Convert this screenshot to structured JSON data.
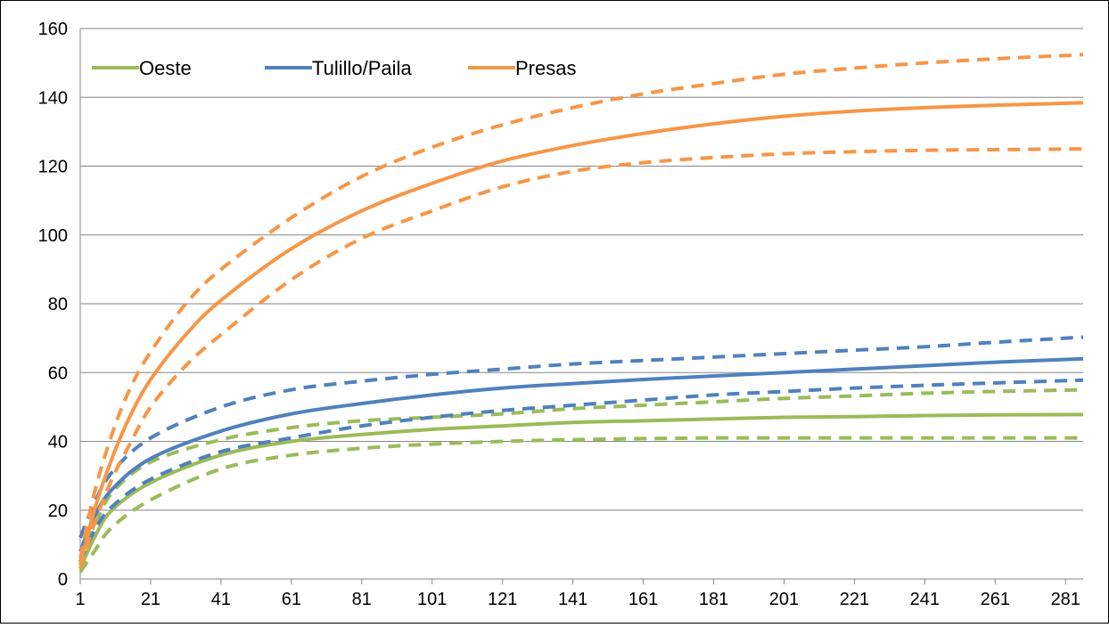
{
  "chart_data": {
    "type": "line",
    "title": "",
    "xlabel": "",
    "ylabel": "",
    "xlim": [
      1,
      286
    ],
    "ylim": [
      0,
      160
    ],
    "grid": "horizontal",
    "legend_position": "top-left",
    "x_ticks": [
      1,
      21,
      41,
      61,
      81,
      101,
      121,
      141,
      161,
      181,
      201,
      221,
      241,
      261,
      281
    ],
    "y_ticks": [
      0,
      20,
      40,
      60,
      80,
      100,
      120,
      140,
      160
    ],
    "legend": [
      {
        "name": "Oeste",
        "color": "#9BBB59"
      },
      {
        "name": "Tulillo/Paila",
        "color": "#4F81BD"
      },
      {
        "name": "Presas",
        "color": "#F79646"
      }
    ],
    "series": [
      {
        "group": "Oeste",
        "style": "solid",
        "color": "#9BBB59",
        "x": [
          1,
          5,
          10,
          21,
          41,
          61,
          81,
          101,
          121,
          141,
          161,
          181,
          201,
          221,
          241,
          261,
          286
        ],
        "y": [
          3,
          12,
          20,
          28,
          36,
          40,
          42,
          43.5,
          44.5,
          45.5,
          46,
          46.5,
          47,
          47.2,
          47.5,
          47.7,
          47.8
        ]
      },
      {
        "group": "Oeste",
        "style": "dashed",
        "color": "#9BBB59",
        "x": [
          1,
          5,
          10,
          21,
          41,
          61,
          81,
          101,
          121,
          141,
          161,
          181,
          201,
          221,
          241,
          261,
          286
        ],
        "y": [
          5,
          15,
          25,
          34,
          40.5,
          44,
          46,
          47,
          48,
          49.5,
          50.5,
          51.5,
          52.5,
          53.2,
          54,
          54.5,
          55
        ]
      },
      {
        "group": "Oeste",
        "style": "dashed",
        "color": "#9BBB59",
        "x": [
          1,
          5,
          10,
          21,
          41,
          61,
          81,
          101,
          121,
          141,
          161,
          181,
          201,
          221,
          241,
          261,
          286
        ],
        "y": [
          2,
          8,
          15,
          23,
          32,
          36,
          38,
          39.2,
          40,
          40.5,
          40.8,
          41,
          41,
          41,
          41,
          41,
          41
        ]
      },
      {
        "group": "Tulillo/Paila",
        "style": "solid",
        "color": "#4F81BD",
        "x": [
          1,
          5,
          10,
          21,
          41,
          61,
          81,
          101,
          121,
          141,
          161,
          181,
          201,
          221,
          241,
          261,
          286
        ],
        "y": [
          8,
          18,
          26,
          35,
          43,
          48,
          51,
          53.5,
          55.5,
          56.8,
          58,
          59,
          60,
          61,
          62,
          63,
          64
        ]
      },
      {
        "group": "Tulillo/Paila",
        "style": "dashed",
        "color": "#4F81BD",
        "x": [
          1,
          5,
          10,
          21,
          41,
          61,
          81,
          101,
          121,
          141,
          161,
          181,
          201,
          221,
          241,
          261,
          286
        ],
        "y": [
          12,
          22,
          31,
          41,
          50,
          55,
          57.5,
          59.5,
          61,
          62.5,
          63.5,
          64.5,
          65.5,
          66.5,
          67.5,
          68.8,
          70.3
        ]
      },
      {
        "group": "Tulillo/Paila",
        "style": "dashed",
        "color": "#4F81BD",
        "x": [
          1,
          5,
          10,
          21,
          41,
          61,
          81,
          101,
          121,
          141,
          161,
          181,
          201,
          221,
          241,
          261,
          286
        ],
        "y": [
          5,
          14,
          21,
          29,
          37,
          41,
          44.5,
          47,
          49,
          50.5,
          52,
          53.5,
          54.5,
          55.5,
          56.3,
          57,
          57.8
        ]
      },
      {
        "group": "Presas",
        "style": "solid",
        "color": "#F79646",
        "x": [
          1,
          5,
          10,
          15,
          21,
          31,
          41,
          61,
          81,
          101,
          121,
          141,
          161,
          181,
          201,
          221,
          241,
          261,
          286
        ],
        "y": [
          4,
          20,
          35,
          47,
          58,
          71,
          81,
          96,
          107,
          115,
          121.5,
          126,
          129.5,
          132.3,
          134.5,
          136,
          137,
          137.7,
          138.4
        ]
      },
      {
        "group": "Presas",
        "style": "dashed",
        "color": "#F79646",
        "x": [
          1,
          5,
          10,
          15,
          21,
          31,
          41,
          61,
          81,
          101,
          121,
          141,
          161,
          181,
          201,
          221,
          241,
          261,
          286
        ],
        "y": [
          6,
          25,
          42,
          55,
          66,
          80,
          90,
          105,
          117,
          125.5,
          132,
          137,
          141,
          144,
          146.7,
          148.5,
          150,
          151.2,
          152.4
        ]
      },
      {
        "group": "Presas",
        "style": "dashed",
        "color": "#F79646",
        "x": [
          1,
          5,
          10,
          15,
          21,
          31,
          41,
          61,
          81,
          101,
          121,
          141,
          161,
          181,
          201,
          221,
          241,
          261,
          286
        ],
        "y": [
          3,
          16,
          29,
          39,
          50,
          62,
          71,
          87,
          99,
          107,
          114,
          118.5,
          121,
          122.5,
          123.6,
          124.2,
          124.6,
          124.8,
          125
        ]
      }
    ]
  }
}
